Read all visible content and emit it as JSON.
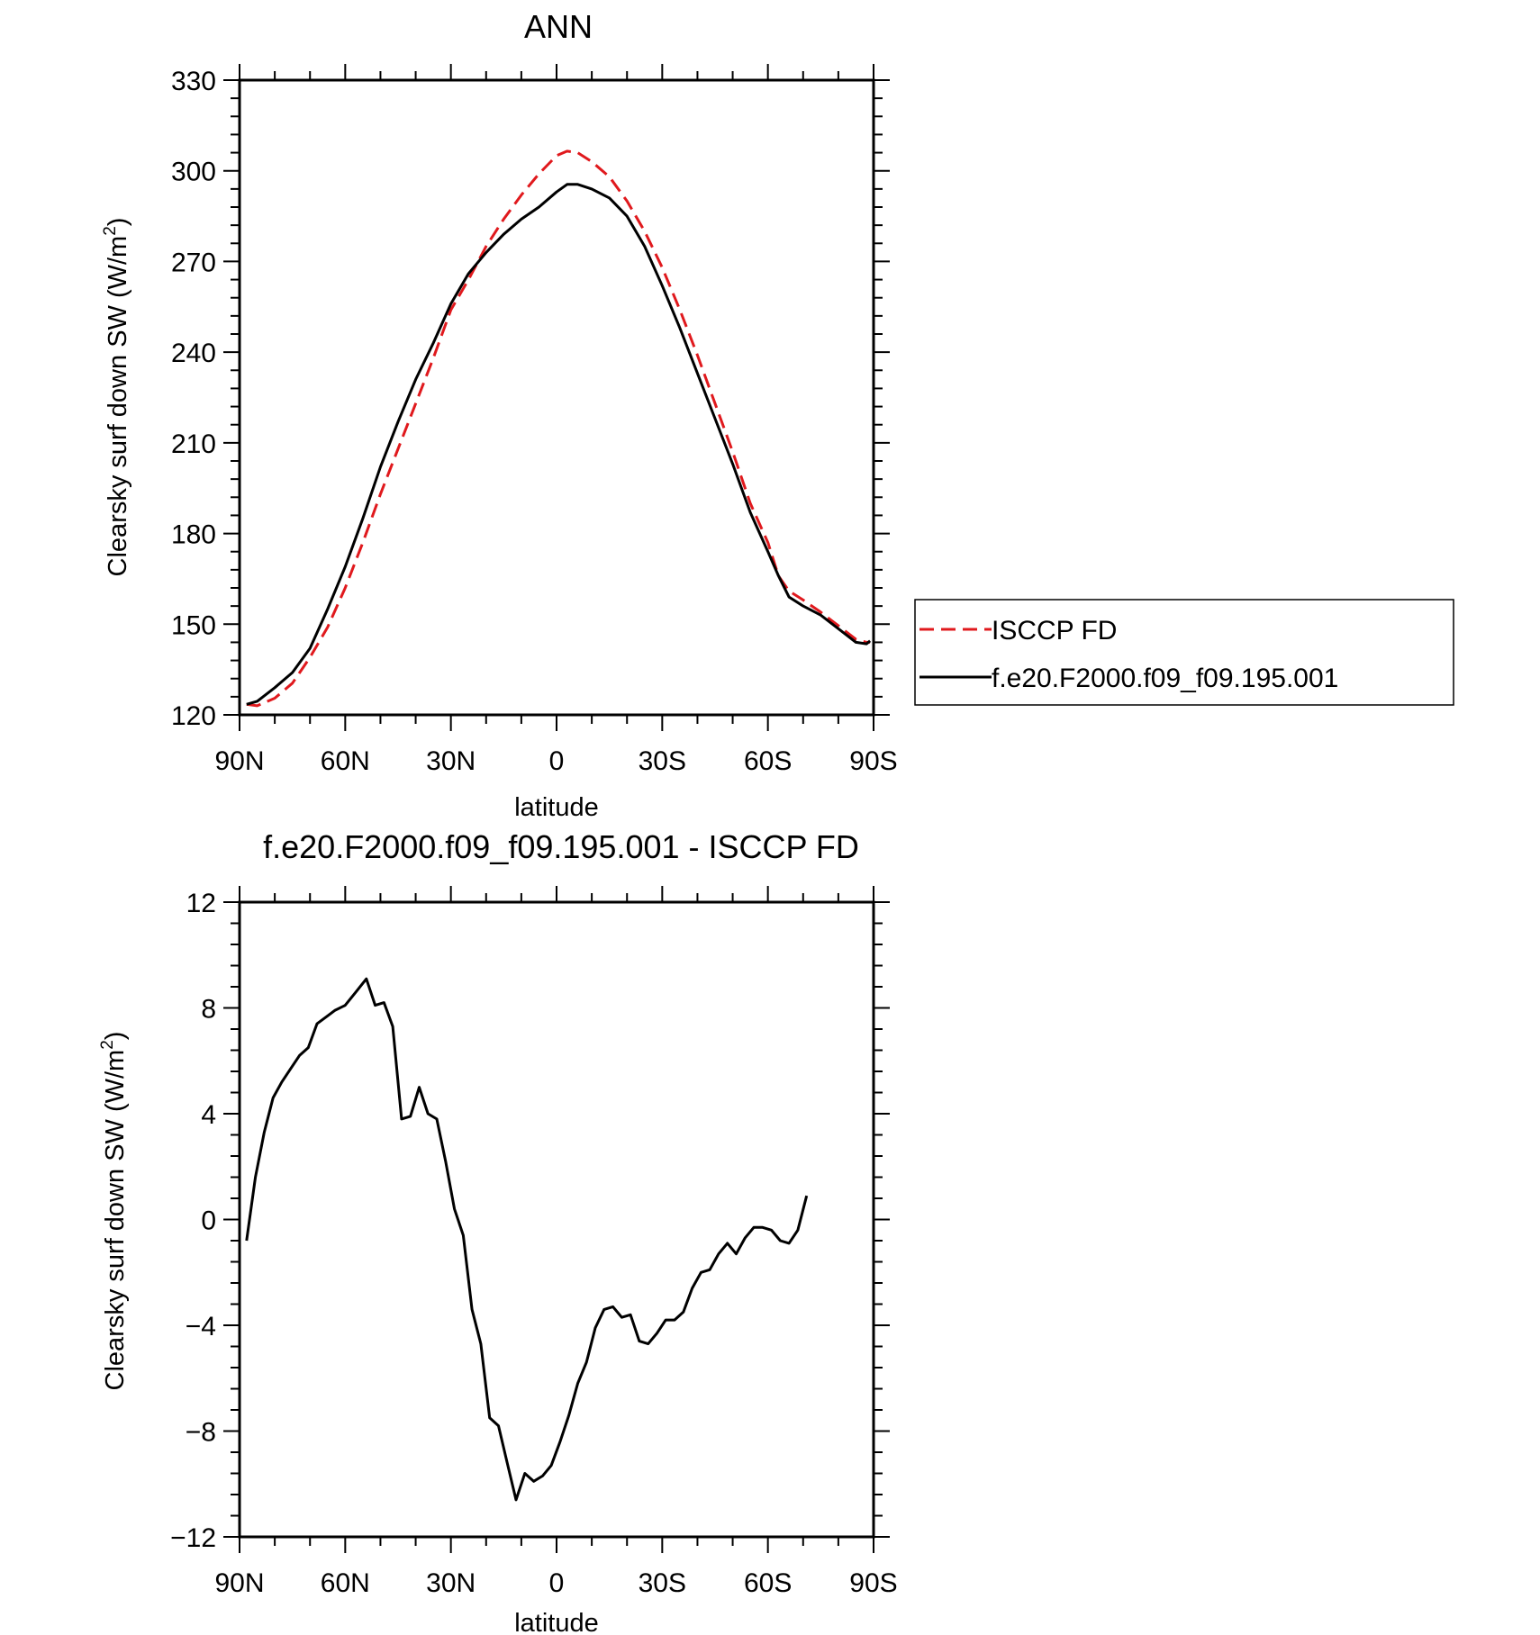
{
  "chart_data": [
    {
      "type": "line",
      "title": "ANN",
      "xlabel": "latitude",
      "ylabel_main": "Clearsky surf down SW (W/m",
      "ylabel_sup": "2",
      "ylabel_tail": ")",
      "xlim": [
        90,
        -90
      ],
      "ylim": [
        120,
        330
      ],
      "yticks": [
        120,
        150,
        180,
        210,
        240,
        270,
        300,
        330
      ],
      "xticks": [
        {
          "v": 90,
          "label": "90N"
        },
        {
          "v": 60,
          "label": "60N"
        },
        {
          "v": 30,
          "label": "30N"
        },
        {
          "v": 0,
          "label": "0"
        },
        {
          "v": -30,
          "label": "30S"
        },
        {
          "v": -60,
          "label": "60S"
        },
        {
          "v": -90,
          "label": "90S"
        }
      ],
      "legend_position": "right",
      "series": [
        {
          "name": "ISCCP FD",
          "color": "#e0191d",
          "dash": "dashed",
          "points": [
            [
              88,
              123.5
            ],
            [
              85,
              123
            ],
            [
              80,
              125.5
            ],
            [
              75,
              130.5
            ],
            [
              70,
              139
            ],
            [
              65,
              149
            ],
            [
              60,
              162
            ],
            [
              55,
              177
            ],
            [
              50,
              193
            ],
            [
              45,
              208
            ],
            [
              40,
              223
            ],
            [
              35,
              238
            ],
            [
              30,
              254
            ],
            [
              25,
              264
            ],
            [
              20,
              275
            ],
            [
              15,
              284
            ],
            [
              10,
              292
            ],
            [
              5,
              299
            ],
            [
              0,
              305
            ],
            [
              -3,
              306.5
            ],
            [
              -6,
              306
            ],
            [
              -10,
              303
            ],
            [
              -15,
              298
            ],
            [
              -20,
              290
            ],
            [
              -25,
              280
            ],
            [
              -30,
              268
            ],
            [
              -35,
              254
            ],
            [
              -40,
              239
            ],
            [
              -45,
              223
            ],
            [
              -50,
              207
            ],
            [
              -55,
              190
            ],
            [
              -60,
              177
            ],
            [
              -63,
              166
            ],
            [
              -66,
              161
            ],
            [
              -70,
              158
            ],
            [
              -75,
              154
            ],
            [
              -80,
              149.5
            ],
            [
              -85,
              145
            ],
            [
              -88,
              144
            ],
            [
              -89,
              144
            ]
          ]
        },
        {
          "name": "f.e20.F2000.f09_f09.195.001",
          "color": "#000000",
          "dash": "solid",
          "points": [
            [
              88,
              123.5
            ],
            [
              85,
              124.5
            ],
            [
              80,
              129
            ],
            [
              75,
              134
            ],
            [
              70,
              142
            ],
            [
              65,
              155
            ],
            [
              60,
              169
            ],
            [
              55,
              185
            ],
            [
              50,
              202
            ],
            [
              45,
              217
            ],
            [
              40,
              231
            ],
            [
              35,
              243
            ],
            [
              30,
              256
            ],
            [
              25,
              266
            ],
            [
              20,
              273
            ],
            [
              15,
              279
            ],
            [
              10,
              284
            ],
            [
              5,
              288
            ],
            [
              0,
              293
            ],
            [
              -3,
              295.5
            ],
            [
              -6,
              295.5
            ],
            [
              -10,
              294
            ],
            [
              -15,
              291
            ],
            [
              -20,
              285
            ],
            [
              -25,
              275
            ],
            [
              -30,
              262
            ],
            [
              -35,
              248
            ],
            [
              -40,
              233
            ],
            [
              -45,
              218
            ],
            [
              -50,
              203
            ],
            [
              -55,
              187
            ],
            [
              -60,
              174
            ],
            [
              -63,
              166
            ],
            [
              -66,
              159
            ],
            [
              -70,
              156
            ],
            [
              -75,
              153
            ],
            [
              -80,
              148.5
            ],
            [
              -85,
              144
            ],
            [
              -88,
              143.5
            ],
            [
              -89,
              144.5
            ]
          ]
        }
      ]
    },
    {
      "type": "line",
      "title": "f.e20.F2000.f09_f09.195.001 - ISCCP FD",
      "xlabel": "latitude",
      "ylabel_main": "Clearsky surf down SW (W/m",
      "ylabel_sup": "2",
      "ylabel_tail": ")",
      "xlim": [
        90,
        -90
      ],
      "ylim": [
        -12,
        12
      ],
      "yticks": [
        -12,
        -8,
        -4,
        0,
        4,
        8,
        12
      ],
      "ytick_labels": [
        "−12",
        "−8",
        "−4",
        "0",
        "4",
        "8",
        "12"
      ],
      "xticks": [
        {
          "v": 90,
          "label": "90N"
        },
        {
          "v": 60,
          "label": "60N"
        },
        {
          "v": 30,
          "label": "30N"
        },
        {
          "v": 0,
          "label": "0"
        },
        {
          "v": -30,
          "label": "30S"
        },
        {
          "v": -60,
          "label": "60S"
        },
        {
          "v": -90,
          "label": "90S"
        }
      ],
      "series": [
        {
          "name": "",
          "color": "#000000",
          "dash": "solid",
          "points": [
            [
              88,
              -0.8
            ],
            [
              85.5,
              1.6
            ],
            [
              83,
              3.3
            ],
            [
              80.5,
              4.6
            ],
            [
              78,
              5.2
            ],
            [
              75.5,
              5.7
            ],
            [
              73,
              6.2
            ],
            [
              70.5,
              6.5
            ],
            [
              68,
              7.4
            ],
            [
              65,
              7.7
            ],
            [
              63,
              7.9
            ],
            [
              60,
              8.1
            ],
            [
              57,
              8.6
            ],
            [
              54,
              9.1
            ],
            [
              51.5,
              8.1
            ],
            [
              49,
              8.2
            ],
            [
              46.5,
              7.3
            ],
            [
              44,
              3.8
            ],
            [
              41.5,
              3.9
            ],
            [
              39,
              5.0
            ],
            [
              36.5,
              4.0
            ],
            [
              34,
              3.8
            ],
            [
              31.5,
              2.2
            ],
            [
              29,
              0.4
            ],
            [
              26.5,
              -0.6
            ],
            [
              24,
              -3.4
            ],
            [
              21.5,
              -4.7
            ],
            [
              19,
              -7.5
            ],
            [
              16.5,
              -7.8
            ],
            [
              14,
              -9.2
            ],
            [
              11.5,
              -10.6
            ],
            [
              9,
              -9.6
            ],
            [
              6.5,
              -9.9
            ],
            [
              4,
              -9.7
            ],
            [
              1.5,
              -9.3
            ],
            [
              -1,
              -8.4
            ],
            [
              -3.5,
              -7.4
            ],
            [
              -6,
              -6.2
            ],
            [
              -8.5,
              -5.4
            ],
            [
              -11,
              -4.1
            ],
            [
              -13.5,
              -3.4
            ],
            [
              -16,
              -3.3
            ],
            [
              -18.5,
              -3.7
            ],
            [
              -21,
              -3.6
            ],
            [
              -23.5,
              -4.6
            ],
            [
              -26,
              -4.7
            ],
            [
              -28.5,
              -4.3
            ],
            [
              -31,
              -3.8
            ],
            [
              -33.5,
              -3.8
            ],
            [
              -36,
              -3.5
            ],
            [
              -38.5,
              -2.6
            ],
            [
              -41,
              -2.0
            ],
            [
              -43.5,
              -1.9
            ],
            [
              -46,
              -1.3
            ],
            [
              -48.5,
              -0.9
            ],
            [
              -51,
              -1.3
            ],
            [
              -53.5,
              -0.7
            ],
            [
              -56,
              -0.3
            ],
            [
              -58.5,
              -0.3
            ],
            [
              -61,
              -0.4
            ],
            [
              -63.5,
              -0.8
            ],
            [
              -66,
              -0.9
            ],
            [
              -68.5,
              -0.4
            ],
            [
              -71,
              0.9
            ]
          ]
        }
      ]
    }
  ]
}
